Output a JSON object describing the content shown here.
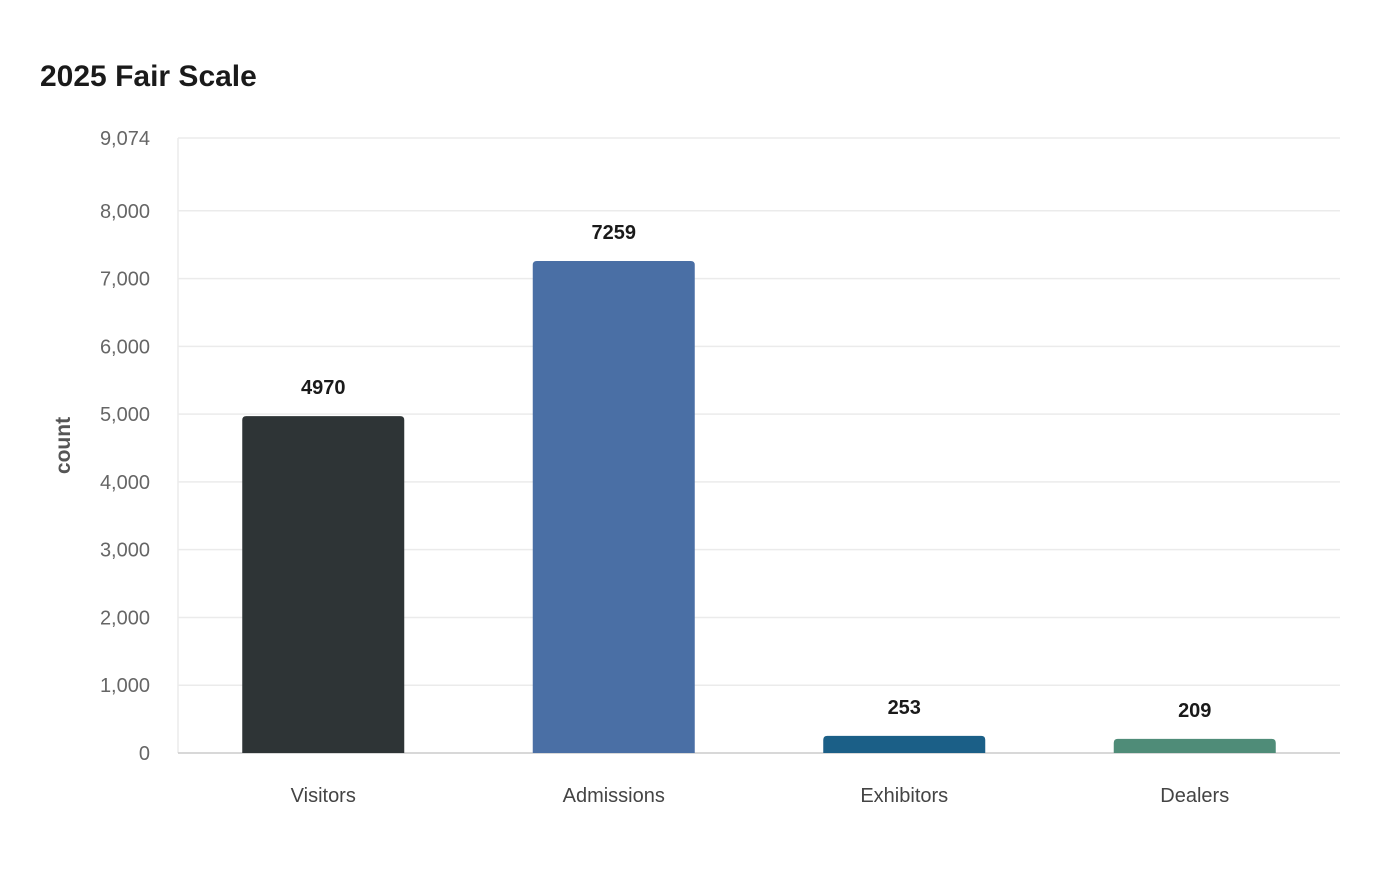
{
  "chart_data": {
    "type": "bar",
    "title": "2025 Fair Scale",
    "xlabel": "",
    "ylabel": "count",
    "categories": [
      "Visitors",
      "Admissions",
      "Exhibitors",
      "Dealers"
    ],
    "values": [
      4970,
      7259,
      253,
      209
    ],
    "data_labels": [
      "4970",
      "7259",
      "253",
      "209"
    ],
    "colors": [
      "#2e3436",
      "#4a6fa5",
      "#1b5f87",
      "#4f8c78"
    ],
    "ylim": [
      0,
      9074
    ],
    "yticks": [
      0,
      1000,
      2000,
      3000,
      4000,
      5000,
      6000,
      7000,
      8000,
      9074
    ],
    "ytick_labels": [
      "0",
      "1,000",
      "2,000",
      "3,000",
      "4,000",
      "5,000",
      "6,000",
      "7,000",
      "8,000",
      "9,074"
    ],
    "grid": true,
    "grid_color": "#ebebeb",
    "axis_color": "#cccccc",
    "legend": "none"
  }
}
